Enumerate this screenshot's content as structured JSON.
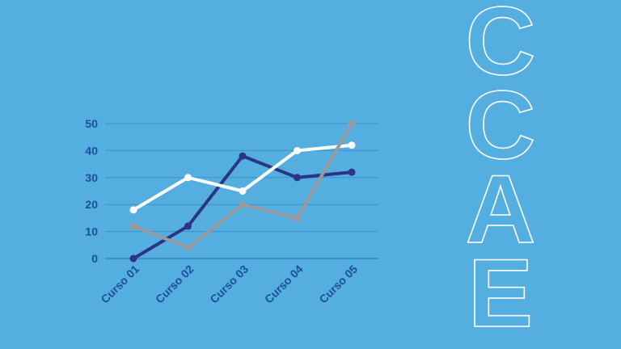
{
  "chart_data": {
    "type": "line",
    "categories": [
      "Curso 01",
      "Curso 02",
      "Curso 03",
      "Curso 04",
      "Curso 05"
    ],
    "series": [
      {
        "values": [
          0,
          12,
          38,
          30,
          32
        ],
        "color": "#2b3486"
      },
      {
        "values": [
          18,
          30,
          25,
          40,
          42
        ],
        "color": "#ffffff"
      },
      {
        "values": [
          12,
          4,
          20,
          15,
          50
        ],
        "color": "#9a9a9e"
      }
    ],
    "yticks": [
      "0",
      "10",
      "20",
      "30",
      "40",
      "50"
    ],
    "ylim": [
      0,
      50
    ],
    "grid": true,
    "title": "",
    "xlabel": "",
    "ylabel": ""
  },
  "side_letters": [
    "C",
    "C",
    "A",
    "E"
  ]
}
